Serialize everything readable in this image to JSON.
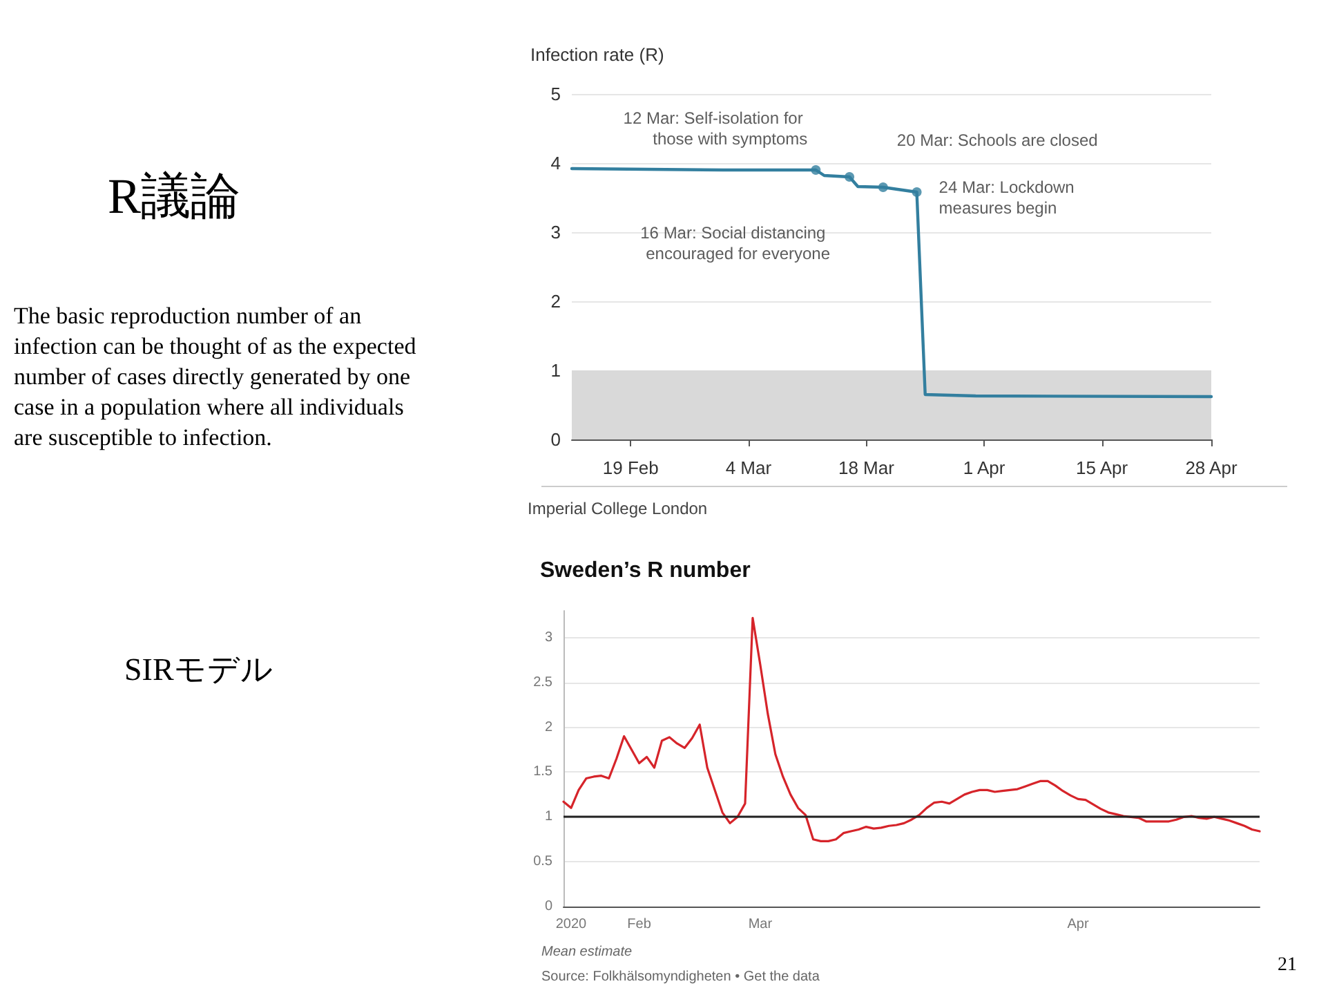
{
  "chart_data": [
    {
      "type": "other",
      "title": "R議論",
      "annotations": [
        "The basic reproduction number of an infection can be thought of as the expected number of cases directly generated by one case in a population where all individuals are susceptible to infection.",
        "SIRモデル",
        "21"
      ]
    },
    {
      "type": "line",
      "ylabel": "Infection rate (R)",
      "color": "#337f9f",
      "x": [
        "2020-02-12",
        "2020-03-01",
        "2020-03-12",
        "2020-03-13",
        "2020-03-16",
        "2020-03-17",
        "2020-03-20",
        "2020-03-24",
        "2020-03-25",
        "2020-03-31",
        "2020-04-28"
      ],
      "values": [
        3.92,
        3.9,
        3.9,
        3.82,
        3.8,
        3.66,
        3.65,
        3.58,
        0.65,
        0.63,
        0.62
      ],
      "xlim": [
        "2020-02-12",
        "2020-04-28"
      ],
      "xticks": [
        {
          "value": "2020-02-19",
          "label": "19 Feb"
        },
        {
          "value": "2020-03-04",
          "label": "4 Mar"
        },
        {
          "value": "2020-03-18",
          "label": "18 Mar"
        },
        {
          "value": "2020-04-01",
          "label": "1 Apr"
        },
        {
          "value": "2020-04-15",
          "label": "15 Apr"
        },
        {
          "value": "2020-04-28",
          "label": "28 Apr"
        }
      ],
      "ylim": [
        0,
        5
      ],
      "yticks": [
        0,
        1,
        2,
        3,
        4,
        5
      ],
      "grid": "y",
      "bands": [
        {
          "axis": "y",
          "from": 0,
          "to": 1,
          "color": "#d9d9d9"
        }
      ],
      "annotations": [
        {
          "text": "12 Mar: Self-isolation for those with symptoms",
          "x": "2020-03-12",
          "y": 3.9
        },
        {
          "text": "16 Mar: Social distancing encouraged for everyone",
          "x": "2020-03-16",
          "y": 3.8
        },
        {
          "text": "20 Mar: Schools are closed",
          "x": "2020-03-20",
          "y": 3.65
        },
        {
          "text": "24 Mar: Lockdown measures begin",
          "x": "2020-03-24",
          "y": 3.58
        },
        "Imperial College London"
      ]
    },
    {
      "type": "line",
      "title": "Sweden’s R number",
      "color": "#d6242a",
      "categories": [
        null,
        "2020",
        null,
        null,
        null,
        null,
        null,
        null,
        null,
        null,
        "Feb",
        null,
        null,
        null,
        null,
        null,
        null,
        null,
        null,
        null,
        null,
        null,
        null,
        null,
        null,
        null,
        "Mar",
        null,
        null,
        null,
        null,
        null,
        null,
        null,
        null,
        null,
        null,
        null,
        null,
        null,
        null,
        null,
        null,
        null,
        null,
        null,
        null,
        null,
        null,
        null,
        null,
        null,
        null,
        null,
        null,
        null,
        null,
        null,
        null,
        null,
        null,
        null,
        null,
        null,
        null,
        null,
        null,
        null,
        "Apr",
        null,
        null,
        null,
        null,
        null,
        null,
        null,
        null,
        null,
        null,
        null,
        null,
        null,
        null,
        null,
        null,
        null,
        null,
        null,
        null,
        null,
        null,
        null,
        null
      ],
      "values": [
        1.17,
        1.1,
        1.3,
        1.43,
        1.45,
        1.46,
        1.43,
        1.65,
        1.9,
        1.75,
        1.6,
        1.67,
        1.55,
        1.85,
        1.89,
        1.82,
        1.77,
        1.88,
        2.03,
        1.55,
        1.3,
        1.05,
        0.93,
        1.0,
        1.15,
        3.22,
        2.7,
        2.15,
        1.7,
        1.45,
        1.25,
        1.1,
        1.02,
        0.75,
        0.73,
        0.73,
        0.75,
        0.82,
        0.84,
        0.86,
        0.89,
        0.87,
        0.88,
        0.9,
        0.91,
        0.93,
        0.97,
        1.02,
        1.1,
        1.16,
        1.17,
        1.15,
        1.2,
        1.25,
        1.28,
        1.3,
        1.3,
        1.28,
        1.29,
        1.3,
        1.31,
        1.34,
        1.37,
        1.4,
        1.4,
        1.35,
        1.29,
        1.24,
        1.2,
        1.19,
        1.14,
        1.09,
        1.05,
        1.03,
        1.01,
        1.0,
        0.99,
        0.95,
        0.95,
        0.95,
        0.95,
        0.97,
        1.0,
        1.01,
        0.99,
        0.98,
        1.0,
        0.98,
        0.96,
        0.93,
        0.9,
        0.86,
        0.84
      ],
      "ylim": [
        0,
        3.3
      ],
      "yticks": [
        0,
        0.5,
        1,
        1.5,
        2,
        2.5,
        3
      ],
      "grid": "y",
      "ref_lines": [
        {
          "axis": "y",
          "value": 1,
          "color": "#222222"
        }
      ],
      "annotations": [
        "Mean estimate",
        "Source: Folkhälsomyndigheten • Get the data"
      ]
    }
  ]
}
